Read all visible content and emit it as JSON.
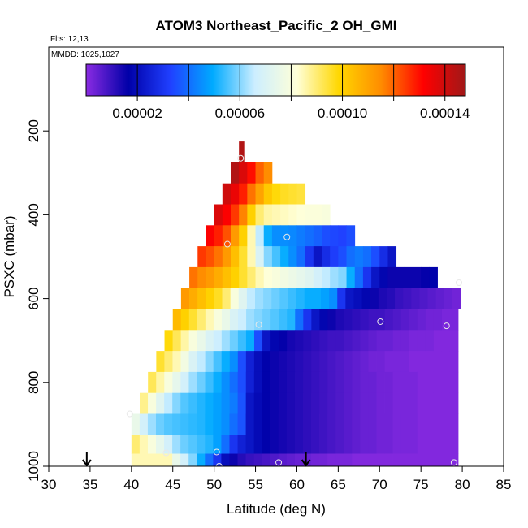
{
  "chart_data": {
    "type": "heatmap",
    "title": "ATOM3 Northeast_Pacific_2 OH_GMI",
    "annotations": [
      "Flts: 12,13",
      "MMDD: 1025,1027"
    ],
    "xlabel": "Latitude (deg N)",
    "ylabel": "PSXC (mbar)",
    "xlim": [
      30,
      85
    ],
    "ylim": [
      1000,
      0
    ],
    "x_ticks": [
      "30",
      "35",
      "40",
      "45",
      "50",
      "55",
      "60",
      "65",
      "70",
      "75",
      "80",
      "85"
    ],
    "y_ticks": [
      "200",
      "400",
      "600",
      "800",
      "1000"
    ],
    "colorbar": {
      "range": [
        0,
        0.000148
      ],
      "tick_labels": [
        "0.00002",
        "0.00006",
        "0.00010",
        "0.00014"
      ],
      "tick_values": [
        2e-05,
        6e-05,
        0.0001,
        0.00014
      ],
      "colors": [
        "#8a2be2",
        "#0000a8",
        "#2040ff",
        "#00aaff",
        "#cceeff",
        "#ffffd8",
        "#ffd700",
        "#ff8c00",
        "#ff0000",
        "#a01818"
      ]
    },
    "rows": [
      {
        "p": 250,
        "x0": 53.0,
        "x1": 53.6,
        "v": [
          0.000145
        ]
      },
      {
        "p": 300,
        "x0": 52.0,
        "x1": 57.0,
        "v": [
          0.000145,
          0.000138,
          0.00013,
          0.00012,
          0.000115
        ]
      },
      {
        "p": 350,
        "x0": 51.0,
        "x1": 61.0,
        "v": [
          0.00014,
          0.000135,
          0.000128,
          0.000118,
          0.00011,
          0.000102,
          9.8e-05,
          9.6e-05,
          9.5e-05,
          9.4e-05
        ]
      },
      {
        "p": 400,
        "x0": 50.0,
        "x1": 64.0,
        "v": [
          0.000138,
          0.000132,
          0.000125,
          0.000116,
          0.0001,
          9e-05,
          8.6e-05,
          8.5e-05,
          8.4e-05,
          8.3e-05,
          8.2e-05,
          8.1e-05,
          8.1e-05,
          8e-05
        ]
      },
      {
        "p": 450,
        "x0": 49.0,
        "x1": 67.0,
        "v": [
          0.000132,
          0.000128,
          0.000122,
          0.000112,
          0.0001,
          8.5e-05,
          6.5e-05,
          5e-05,
          4.5e-05,
          4.5e-05,
          4.4e-05,
          4.2e-05,
          4e-05,
          3.8e-05,
          3.5e-05,
          3.4e-05,
          3.3e-05,
          3.5e-05
        ]
      },
      {
        "p": 500,
        "x0": 48.0,
        "x1": 72.0,
        "v": [
          0.000125,
          0.000122,
          0.000118,
          0.000112,
          0.000104,
          9.5e-05,
          8.5e-05,
          7e-05,
          6e-05,
          5.5e-05,
          5e-05,
          4.5e-05,
          4e-05,
          3e-05,
          2.2e-05,
          2.8e-05,
          3.2e-05,
          3.5e-05,
          4e-05,
          4.2e-05,
          4e-05,
          3.5e-05,
          2.8e-05,
          2.2e-05
        ]
      },
      {
        "p": 550,
        "x0": 47.0,
        "x1": 77.0,
        "v": [
          0.000118,
          0.000115,
          0.000112,
          0.000108,
          0.000104,
          0.0001,
          9.5e-05,
          9e-05,
          8.5e-05,
          8.2e-05,
          8e-05,
          7.8e-05,
          7.6e-05,
          7.4e-05,
          7.2e-05,
          6.8e-05,
          6.5e-05,
          6.2e-05,
          6e-05,
          5e-05,
          4e-05,
          3e-05,
          2.2e-05,
          1.8e-05,
          1.5e-05,
          1.5e-05,
          1.5e-05,
          1.5e-05,
          1.6e-05,
          1.7e-05
        ]
      },
      {
        "p": 600,
        "x0": 46.0,
        "x1": 79.8,
        "v": [
          0.000112,
          0.000108,
          0.000104,
          0.0001,
          9.6e-05,
          9e-05,
          8e-05,
          7.2e-05,
          6.5e-05,
          6.2e-05,
          6e-05,
          5.8e-05,
          5.6e-05,
          5.4e-05,
          5.2e-05,
          5e-05,
          5e-05,
          4.8e-05,
          4.5e-05,
          3e-05,
          2.2e-05,
          2e-05,
          1.8e-05,
          1.5e-05,
          1.3e-05,
          1.2e-05,
          1e-05,
          9e-06,
          8e-06,
          7e-06,
          6e-06,
          5e-06,
          4e-06,
          3e-06
        ]
      },
      {
        "p": 650,
        "x0": 45.0,
        "x1": 79.5,
        "v": [
          0.000105,
          0.0001,
          9.5e-05,
          9e-05,
          8.5e-05,
          8e-05,
          7.5e-05,
          7e-05,
          6.6e-05,
          6.2e-05,
          6e-05,
          5.8e-05,
          5.6e-05,
          5.4e-05,
          5.2e-05,
          4e-05,
          3e-05,
          2.2e-05,
          1.8e-05,
          1.5e-05,
          1.3e-05,
          1.2e-05,
          1.1e-05,
          1e-05,
          9e-06,
          9e-06,
          8e-06,
          7e-06,
          6e-06,
          5e-06,
          4e-06,
          3e-06,
          3e-06,
          2e-06,
          2e-06
        ]
      },
      {
        "p": 700,
        "x0": 44.0,
        "x1": 79.5,
        "v": [
          9.8e-05,
          9.2e-05,
          8.6e-05,
          8e-05,
          7.5e-05,
          7e-05,
          6.6e-05,
          6.2e-05,
          5.8e-05,
          5.4e-05,
          5e-05,
          3.5e-05,
          2.2e-05,
          1.8e-05,
          1.6e-05,
          1.4e-05,
          1.3e-05,
          1.2e-05,
          1.1e-05,
          1e-05,
          9e-06,
          9e-06,
          8e-06,
          7e-06,
          6e-06,
          5e-06,
          4e-06,
          4e-06,
          3e-06,
          3e-06,
          2e-06,
          2e-06,
          2e-06,
          1e-06,
          1e-06,
          1e-06
        ]
      },
      {
        "p": 750,
        "x0": 43.0,
        "x1": 79.5,
        "v": [
          9.5e-05,
          9e-05,
          8.5e-05,
          7.8e-05,
          7e-05,
          6.5e-05,
          6e-05,
          5.5e-05,
          5e-05,
          4.5e-05,
          3.5e-05,
          2.5e-05,
          2e-05,
          1.7e-05,
          1.5e-05,
          1.4e-05,
          1.3e-05,
          1.2e-05,
          1.1e-05,
          1e-05,
          9e-06,
          8e-06,
          7e-06,
          6e-06,
          5e-06,
          4e-06,
          3e-06,
          3e-06,
          2e-06,
          2e-06,
          2e-06,
          1e-06,
          1e-06,
          1e-06,
          1e-06,
          1e-06,
          1e-06
        ]
      },
      {
        "p": 800,
        "x0": 42.0,
        "x1": 79.5,
        "v": [
          9.2e-05,
          8.6e-05,
          8e-05,
          7.4e-05,
          6.8e-05,
          6.2e-05,
          5.8e-05,
          5.4e-05,
          5e-05,
          4.5e-05,
          4e-05,
          3.5e-05,
          2.5e-05,
          2e-05,
          1.7e-05,
          1.5e-05,
          1.4e-05,
          1.3e-05,
          1.2e-05,
          1.1e-05,
          1e-05,
          9e-06,
          8e-06,
          7e-06,
          6e-06,
          5e-06,
          4e-06,
          4e-06,
          3e-06,
          3e-06,
          2e-06,
          2e-06,
          2e-06,
          1e-06,
          1e-06,
          1e-06,
          1e-06,
          1e-06
        ]
      },
      {
        "p": 850,
        "x0": 41.0,
        "x1": 79.5,
        "v": [
          8.8e-05,
          8e-05,
          7.2e-05,
          6.5e-05,
          6e-05,
          5.6e-05,
          5.4e-05,
          5.2e-05,
          5e-05,
          4.8e-05,
          4.5e-05,
          4.2e-05,
          3.6e-05,
          2.2e-05,
          1.9e-05,
          1.7e-05,
          1.5e-05,
          1.4e-05,
          1.3e-05,
          1.2e-05,
          1.1e-05,
          1e-05,
          9e-06,
          8e-06,
          7e-06,
          6e-06,
          5e-06,
          4e-06,
          4e-06,
          3e-06,
          3e-06,
          2e-06,
          2e-06,
          2e-06,
          1e-06,
          1e-06,
          1e-06,
          1e-06,
          1e-06
        ]
      },
      {
        "p": 900,
        "x0": 40.0,
        "x1": 79.5,
        "v": [
          7.5e-05,
          6.8e-05,
          6.2e-05,
          5.8e-05,
          5.6e-05,
          5.5e-05,
          5.4e-05,
          5.3e-05,
          5.2e-05,
          5e-05,
          4.8e-05,
          4.5e-05,
          4e-05,
          3.6e-05,
          2.2e-05,
          1.9e-05,
          1.7e-05,
          1.5e-05,
          1.4e-05,
          1.3e-05,
          1.2e-05,
          1.1e-05,
          1e-05,
          9e-06,
          8e-06,
          7e-06,
          6e-06,
          5e-06,
          4e-06,
          4e-06,
          3e-06,
          3e-06,
          2e-06,
          2e-06,
          2e-06,
          1e-06,
          1e-06,
          1e-06,
          1e-06,
          1e-06
        ]
      },
      {
        "p": 950,
        "x0": 40.0,
        "x1": 79.5,
        "v": [
          9e-05,
          8.5e-05,
          8e-05,
          7.4e-05,
          6.8e-05,
          6.2e-05,
          5.8e-05,
          5.6e-05,
          5.4e-05,
          5.2e-05,
          4.8e-05,
          4e-05,
          3e-05,
          2.5e-05,
          2.2e-05,
          1.9e-05,
          1.7e-05,
          1.5e-05,
          1.4e-05,
          1.3e-05,
          1.2e-05,
          1.1e-05,
          1e-05,
          9e-06,
          8e-06,
          7e-06,
          6e-06,
          5e-06,
          4e-06,
          4e-06,
          3e-06,
          3e-06,
          2e-06,
          2e-06,
          2e-06,
          1e-06,
          1e-06,
          1e-06,
          1e-06,
          1e-06
        ]
      },
      {
        "p": 990,
        "x0": 40.0,
        "x1": 79.5,
        "v": [
          8.5e-05,
          8.5e-05,
          8.5e-05,
          8.5e-05,
          8.5e-05,
          7.5e-05,
          6.8e-05,
          6e-05,
          5e-05,
          4e-05,
          3e-05,
          2e-05,
          1.5e-05,
          1.2e-05,
          1e-05,
          9e-06,
          8e-06,
          7e-06,
          6e-06,
          5e-06,
          4e-06,
          4e-06,
          3e-06,
          3e-06,
          2e-06,
          2e-06,
          2e-06,
          1e-06,
          1e-06,
          1e-06,
          1e-06,
          1e-06,
          1e-06,
          1e-06,
          1e-06,
          1e-06,
          1e-06,
          1e-06,
          1e-06,
          1e-06
        ]
      }
    ],
    "flight_points": [
      {
        "x": 53.2,
        "p": 265
      },
      {
        "x": 51.6,
        "p": 470
      },
      {
        "x": 58.8,
        "p": 453
      },
      {
        "x": 79.6,
        "p": 562
      },
      {
        "x": 55.4,
        "p": 662
      },
      {
        "x": 70.1,
        "p": 655
      },
      {
        "x": 78.1,
        "p": 665
      },
      {
        "x": 39.8,
        "p": 875
      },
      {
        "x": 44.2,
        "p": 968
      },
      {
        "x": 50.3,
        "p": 966
      },
      {
        "x": 50.6,
        "p": 1000
      },
      {
        "x": 57.8,
        "p": 991
      },
      {
        "x": 79.0,
        "p": 991
      }
    ],
    "arrows": [
      34.6,
      61.1
    ]
  }
}
